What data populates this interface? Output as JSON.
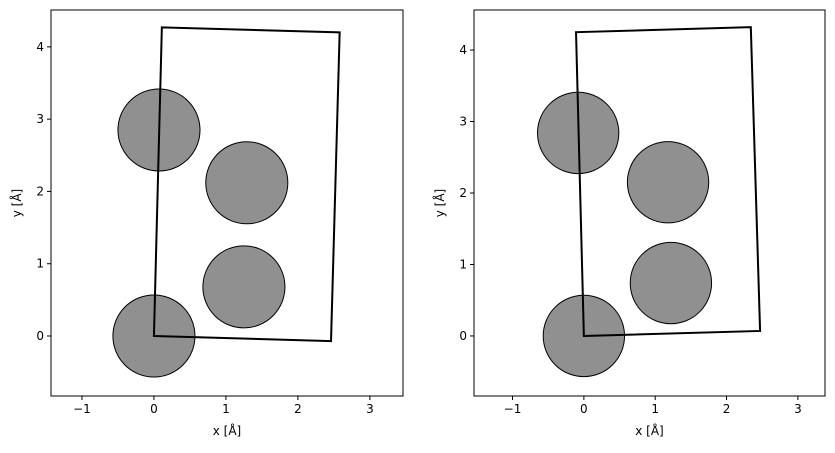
{
  "chart_data": [
    {
      "type": "scatter",
      "x_label": "x [Å]",
      "y_label": "y [Å]",
      "xlim": [
        -1.43,
        3.46
      ],
      "ylim": [
        -0.83,
        4.51
      ],
      "xticks": [
        {
          "value": -1,
          "label": "−1"
        },
        0,
        1,
        2,
        3
      ],
      "yticks": [
        0,
        1,
        2,
        3,
        4
      ],
      "atoms": {
        "x": [
          0,
          1.25,
          1.29,
          0.07
        ],
        "y": [
          0,
          0.68,
          2.12,
          2.85
        ],
        "radius": 0.57,
        "color": "#909090"
      },
      "cell": {
        "x": [
          0,
          2.46,
          2.58,
          0.11
        ],
        "y": [
          0,
          -0.07,
          4.2,
          4.27
        ],
        "color": "#000000"
      }
    },
    {
      "type": "scatter",
      "x_label": "x [Å]",
      "y_label": "y [Å]",
      "xlim": [
        -1.54,
        3.38
      ],
      "ylim": [
        -0.84,
        4.56
      ],
      "xticks": [
        {
          "value": -1,
          "label": "−1"
        },
        0,
        1,
        2,
        3
      ],
      "yticks": [
        0,
        1,
        2,
        3,
        4
      ],
      "atoms": {
        "x": [
          0,
          1.22,
          1.18,
          -0.08
        ],
        "y": [
          0,
          0.74,
          2.15,
          2.84
        ],
        "radius": 0.57,
        "color": "#909090"
      },
      "cell": {
        "x": [
          0,
          2.47,
          2.34,
          -0.11
        ],
        "y": [
          0,
          0.07,
          4.32,
          4.25
        ],
        "color": "#000000"
      }
    }
  ]
}
